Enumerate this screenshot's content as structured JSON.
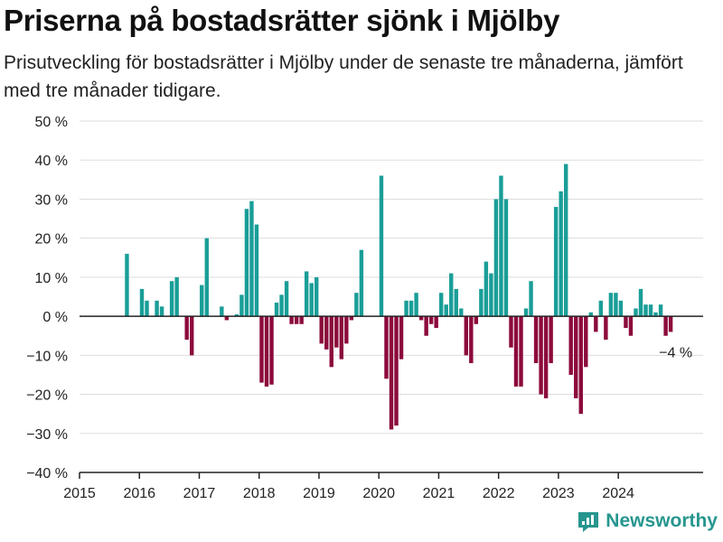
{
  "title": "Priserna på bostadsrätter sjönk i Mjölby",
  "subtitle": "Prisutveckling för bostadsrätter i Mjölby under de senaste tre månaderna, jämfört med tre månader tidigare.",
  "brand": {
    "name": "Newsworthy",
    "icon": "newsworthy-logo-icon"
  },
  "colors": {
    "positive": "#1a9e98",
    "negative": "#8c0a3c",
    "grid": "#dddddd",
    "axis": "#222222"
  },
  "chart_data": {
    "type": "bar",
    "y_unit": " %",
    "ylim": [
      -40,
      50
    ],
    "y_ticks": [
      50,
      40,
      30,
      20,
      10,
      0,
      -10,
      -20,
      -30,
      -40
    ],
    "y_tick_labels": [
      "50 %",
      "40 %",
      "30 %",
      "20 %",
      "10 %",
      "0 %",
      "−10 %",
      "−20 %",
      "−30 %",
      "−40 %"
    ],
    "x_ticks": [
      "2015",
      "2016",
      "2017",
      "2018",
      "2019",
      "2020",
      "2021",
      "2022",
      "2023",
      "2024"
    ],
    "x_range": [
      "2015-01",
      "2025-06"
    ],
    "grid": true,
    "annotation": {
      "text": "−4 %",
      "x": "2024-12",
      "y": -4
    },
    "series": [
      {
        "points": [
          [
            "2015-10",
            16
          ],
          [
            "2016-01",
            7
          ],
          [
            "2016-02",
            4
          ],
          [
            "2016-04",
            4
          ],
          [
            "2016-05",
            2.5
          ],
          [
            "2016-07",
            9
          ],
          [
            "2016-08",
            10
          ],
          [
            "2016-10",
            -6
          ],
          [
            "2016-11",
            -10
          ],
          [
            "2017-01",
            8
          ],
          [
            "2017-02",
            20
          ],
          [
            "2017-05",
            2.5
          ],
          [
            "2017-06",
            -1
          ],
          [
            "2017-08",
            0.5
          ],
          [
            "2017-09",
            5.5
          ],
          [
            "2017-10",
            27.5
          ],
          [
            "2017-11",
            29.5
          ],
          [
            "2017-12",
            23.5
          ],
          [
            "2018-01",
            -17
          ],
          [
            "2018-02",
            -18
          ],
          [
            "2018-03",
            -17.5
          ],
          [
            "2018-04",
            3.5
          ],
          [
            "2018-05",
            5.5
          ],
          [
            "2018-06",
            9
          ],
          [
            "2018-07",
            -2
          ],
          [
            "2018-08",
            -2
          ],
          [
            "2018-09",
            -2
          ],
          [
            "2018-10",
            11.5
          ],
          [
            "2018-11",
            8.5
          ],
          [
            "2018-12",
            10
          ],
          [
            "2019-01",
            -7
          ],
          [
            "2019-02",
            -8.5
          ],
          [
            "2019-03",
            -13
          ],
          [
            "2019-04",
            -8
          ],
          [
            "2019-05",
            -11
          ],
          [
            "2019-06",
            -7
          ],
          [
            "2019-07",
            -1
          ],
          [
            "2019-08",
            6
          ],
          [
            "2019-09",
            17
          ],
          [
            "2020-01",
            36
          ],
          [
            "2020-02",
            -16
          ],
          [
            "2020-03",
            -29
          ],
          [
            "2020-04",
            -28
          ],
          [
            "2020-05",
            -11
          ],
          [
            "2020-06",
            4
          ],
          [
            "2020-07",
            4
          ],
          [
            "2020-08",
            6
          ],
          [
            "2020-09",
            -1
          ],
          [
            "2020-10",
            -5
          ],
          [
            "2020-11",
            -2
          ],
          [
            "2020-12",
            -3
          ],
          [
            "2021-01",
            6
          ],
          [
            "2021-02",
            3
          ],
          [
            "2021-03",
            11
          ],
          [
            "2021-04",
            7
          ],
          [
            "2021-05",
            2
          ],
          [
            "2021-06",
            -10
          ],
          [
            "2021-07",
            -12
          ],
          [
            "2021-08",
            -2
          ],
          [
            "2021-09",
            7
          ],
          [
            "2021-10",
            14
          ],
          [
            "2021-11",
            11
          ],
          [
            "2021-12",
            30
          ],
          [
            "2022-01",
            36
          ],
          [
            "2022-02",
            30
          ],
          [
            "2022-03",
            -8
          ],
          [
            "2022-04",
            -18
          ],
          [
            "2022-05",
            -18
          ],
          [
            "2022-06",
            2
          ],
          [
            "2022-07",
            9
          ],
          [
            "2022-08",
            -12
          ],
          [
            "2022-09",
            -20
          ],
          [
            "2022-10",
            -21
          ],
          [
            "2022-11",
            -12
          ],
          [
            "2022-12",
            28
          ],
          [
            "2023-01",
            32
          ],
          [
            "2023-02",
            39
          ],
          [
            "2023-03",
            -15
          ],
          [
            "2023-04",
            -21
          ],
          [
            "2023-05",
            -25
          ],
          [
            "2023-06",
            -13
          ],
          [
            "2023-07",
            1
          ],
          [
            "2023-08",
            -4
          ],
          [
            "2023-09",
            4
          ],
          [
            "2023-10",
            -6
          ],
          [
            "2023-11",
            6
          ],
          [
            "2023-12",
            6
          ],
          [
            "2024-01",
            4
          ],
          [
            "2024-02",
            -3
          ],
          [
            "2024-03",
            -5
          ],
          [
            "2024-04",
            2
          ],
          [
            "2024-05",
            7
          ],
          [
            "2024-06",
            3
          ],
          [
            "2024-07",
            3
          ],
          [
            "2024-08",
            1
          ],
          [
            "2024-09",
            3
          ],
          [
            "2024-10",
            -5
          ],
          [
            "2024-11",
            -4
          ]
        ]
      }
    ]
  }
}
